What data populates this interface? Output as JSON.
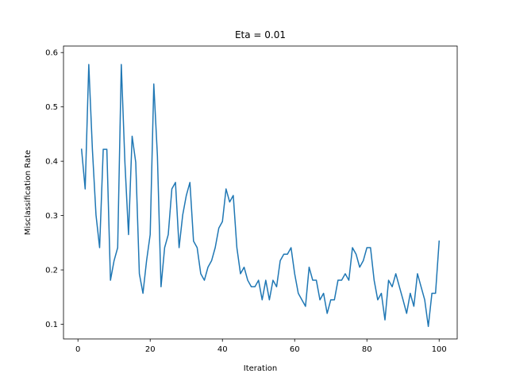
{
  "chart_data": {
    "type": "line",
    "title": "Eta = 0.01",
    "xlabel": "Iteration",
    "ylabel": "Misclassification Rate",
    "xlim": [
      -4,
      105
    ],
    "ylim": [
      0.073,
      0.612
    ],
    "xticks": [
      0,
      20,
      40,
      60,
      80,
      100
    ],
    "yticks": [
      0.1,
      0.2,
      0.3,
      0.4,
      0.5,
      0.6
    ],
    "xtick_labels": [
      "0",
      "20",
      "40",
      "60",
      "80",
      "100"
    ],
    "ytick_labels": [
      "0.1",
      "0.2",
      "0.3",
      "0.4",
      "0.5",
      "0.6"
    ],
    "grid": false,
    "legend": "none",
    "series": [
      {
        "color": "#1f77b4",
        "x": [
          1,
          2,
          3,
          4,
          5,
          6,
          7,
          8,
          9,
          10,
          11,
          12,
          13,
          14,
          15,
          16,
          17,
          18,
          19,
          20,
          21,
          22,
          23,
          24,
          25,
          26,
          27,
          28,
          29,
          30,
          31,
          32,
          33,
          34,
          35,
          36,
          37,
          38,
          39,
          40,
          41,
          42,
          43,
          44,
          45,
          46,
          47,
          48,
          49,
          50,
          51,
          52,
          53,
          54,
          55,
          56,
          57,
          58,
          59,
          60,
          61,
          62,
          63,
          64,
          65,
          66,
          67,
          68,
          69,
          70,
          71,
          72,
          73,
          74,
          75,
          76,
          77,
          78,
          79,
          80,
          81,
          82,
          83,
          84,
          85,
          86,
          87,
          88,
          89,
          90,
          91,
          92,
          93,
          94,
          95,
          96,
          97,
          98,
          99,
          100
        ],
        "values": [
          0.422,
          0.349,
          0.578,
          0.422,
          0.301,
          0.241,
          0.422,
          0.422,
          0.181,
          0.217,
          0.241,
          0.578,
          0.398,
          0.265,
          0.446,
          0.398,
          0.193,
          0.157,
          0.217,
          0.265,
          0.542,
          0.41,
          0.169,
          0.241,
          0.265,
          0.349,
          0.361,
          0.241,
          0.301,
          0.337,
          0.361,
          0.253,
          0.241,
          0.193,
          0.181,
          0.205,
          0.217,
          0.241,
          0.277,
          0.289,
          0.349,
          0.325,
          0.337,
          0.241,
          0.193,
          0.205,
          0.181,
          0.169,
          0.169,
          0.181,
          0.145,
          0.181,
          0.145,
          0.181,
          0.169,
          0.217,
          0.229,
          0.229,
          0.241,
          0.193,
          0.157,
          0.145,
          0.133,
          0.205,
          0.181,
          0.181,
          0.145,
          0.157,
          0.12,
          0.145,
          0.145,
          0.181,
          0.181,
          0.193,
          0.181,
          0.241,
          0.229,
          0.205,
          0.217,
          0.241,
          0.241,
          0.181,
          0.145,
          0.157,
          0.108,
          0.181,
          0.169,
          0.193,
          0.169,
          0.145,
          0.12,
          0.157,
          0.133,
          0.193,
          0.169,
          0.145,
          0.096,
          0.157,
          0.157,
          0.253
        ]
      }
    ]
  }
}
